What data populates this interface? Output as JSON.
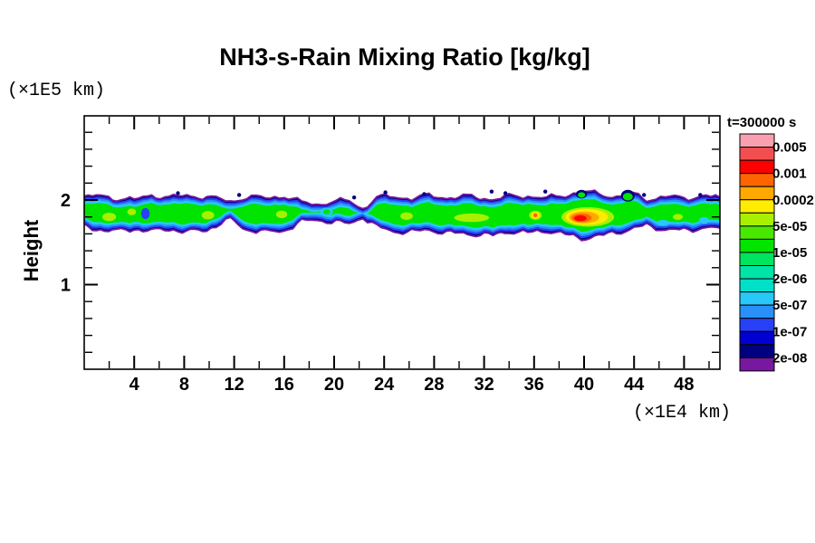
{
  "chart_data": {
    "type": "filled_contour",
    "title": "NH3-s-Rain Mixing Ratio [kg/kg]",
    "time_label": "t=300000 s",
    "ylabel": "Height",
    "ylabel_unit": "(×1E5 km)",
    "xlabel_unit": "(×1E4 km)",
    "x_range": [
      0,
      50.9
    ],
    "y_range": [
      0,
      3
    ],
    "x_major_tick_labels": [
      4,
      8,
      12,
      16,
      20,
      24,
      28,
      32,
      36,
      40,
      44,
      48
    ],
    "x_minor_tick_step": 2,
    "y_major_tick_labels": [
      1,
      2
    ],
    "y_minor_tick_step": 0.2,
    "grid": false,
    "legend": {
      "position": "right",
      "labels": [
        "0.005",
        "0.001",
        "0.0002",
        "5e-05",
        "1e-05",
        "2e-06",
        "5e-07",
        "1e-07",
        "2e-08"
      ],
      "levels_all_boundaries": [
        "0.005",
        "0.002",
        "0.001",
        "0.0005",
        "0.0002",
        "0.0001",
        "5e-05",
        "2e-05",
        "1e-05",
        "5e-06",
        "2e-06",
        "1e-06",
        "5e-07",
        "2e-07",
        "1e-07",
        "5e-08",
        "2e-08"
      ],
      "colors_top_to_bottom": [
        "#F8A0B0",
        "#F25050",
        "#FE0000",
        "#FE6400",
        "#FFA800",
        "#FFEC00",
        "#A8F000",
        "#48E800",
        "#00E400",
        "#00E45E",
        "#00E4A8",
        "#00E0C8",
        "#28C8F8",
        "#2890F8",
        "#2840F8",
        "#0000D0",
        "#000080",
        "#7818A0"
      ]
    },
    "band": {
      "note": "turbulent mixing-ratio band centered near height 1.8-2.0 (x1E5 km), spanning full x range",
      "points": [
        [
          0.0,
          2.03,
          1.69
        ],
        [
          1.3,
          2.05,
          1.65
        ],
        [
          2.6,
          2.02,
          1.63
        ],
        [
          4.0,
          2.0,
          1.66
        ],
        [
          5.4,
          2.06,
          1.63
        ],
        [
          6.8,
          2.03,
          1.66
        ],
        [
          8.2,
          2.05,
          1.62
        ],
        [
          9.8,
          2.04,
          1.65
        ],
        [
          11.7,
          1.98,
          1.77
        ],
        [
          13.0,
          2.04,
          1.65
        ],
        [
          14.5,
          2.02,
          1.62
        ],
        [
          16.0,
          2.05,
          1.64
        ],
        [
          17.4,
          1.97,
          1.74
        ],
        [
          18.6,
          1.95,
          1.77
        ],
        [
          19.8,
          1.98,
          1.74
        ],
        [
          21.2,
          1.99,
          1.72
        ],
        [
          22.3,
          1.9,
          1.8
        ],
        [
          23.4,
          2.03,
          1.68
        ],
        [
          24.8,
          2.04,
          1.63
        ],
        [
          26.2,
          2.02,
          1.62
        ],
        [
          27.6,
          2.05,
          1.65
        ],
        [
          29.0,
          2.03,
          1.61
        ],
        [
          31.0,
          2.04,
          1.6
        ],
        [
          32.7,
          2.01,
          1.58
        ],
        [
          34.0,
          2.04,
          1.63
        ],
        [
          35.5,
          2.05,
          1.61
        ],
        [
          37.0,
          2.02,
          1.64
        ],
        [
          38.5,
          2.06,
          1.59
        ],
        [
          39.8,
          2.1,
          1.55
        ],
        [
          41.2,
          2.07,
          1.57
        ],
        [
          42.6,
          2.04,
          1.62
        ],
        [
          43.7,
          2.08,
          1.65
        ],
        [
          45.0,
          2.01,
          1.7
        ],
        [
          46.5,
          2.04,
          1.65
        ],
        [
          48.0,
          2.02,
          1.64
        ],
        [
          49.4,
          2.05,
          1.67
        ],
        [
          50.9,
          2.03,
          1.67
        ]
      ],
      "layers": [
        {
          "color": "#000080",
          "inset": 0.0,
          "stroke": "#7818A0",
          "wig": 0.022
        },
        {
          "color": "#2840F8",
          "inset": 0.02,
          "wig": 0.018
        },
        {
          "color": "#2890F8",
          "inset": 0.042,
          "wig": 0.016
        },
        {
          "color": "#28C8F8",
          "inset": 0.064,
          "wig": 0.014
        },
        {
          "color": "#00E400",
          "inset": 0.09,
          "wig": 0.012
        }
      ]
    },
    "features": {
      "blobs": [
        [
          4.9,
          1.84,
          0.35,
          0.065,
          "#2840F8"
        ],
        [
          19.4,
          1.86,
          0.5,
          0.05,
          "#28C8F8"
        ],
        [
          19.4,
          1.86,
          0.28,
          0.03,
          "#00E400"
        ],
        [
          2.0,
          1.8,
          0.55,
          0.05,
          "#A8F000"
        ],
        [
          3.8,
          1.86,
          0.35,
          0.04,
          "#A8F000"
        ],
        [
          9.9,
          1.82,
          0.5,
          0.05,
          "#A8F000"
        ],
        [
          15.8,
          1.83,
          0.45,
          0.045,
          "#A8F000"
        ],
        [
          25.8,
          1.81,
          0.5,
          0.045,
          "#A8F000"
        ],
        [
          31.0,
          1.79,
          1.4,
          0.05,
          "#A8F000"
        ],
        [
          47.5,
          1.8,
          0.4,
          0.035,
          "#A8F000"
        ],
        [
          43.5,
          2.05,
          0.55,
          0.07,
          "#000080"
        ],
        [
          43.5,
          2.04,
          0.4,
          0.045,
          "#00E400"
        ],
        [
          39.8,
          2.07,
          0.45,
          0.05,
          "#000080"
        ],
        [
          39.8,
          2.06,
          0.3,
          0.032,
          "#00E400"
        ],
        [
          36.1,
          1.82,
          0.5,
          0.055,
          "#A8F000"
        ],
        [
          36.1,
          1.82,
          0.32,
          0.04,
          "#FFEC00"
        ],
        [
          36.1,
          1.82,
          0.17,
          0.024,
          "#FE6400"
        ],
        [
          40.3,
          1.8,
          2.1,
          0.115,
          "#A8F000"
        ],
        [
          40.2,
          1.8,
          1.7,
          0.095,
          "#FFEC00"
        ],
        [
          40.0,
          1.795,
          1.2,
          0.07,
          "#FFA800"
        ],
        [
          39.8,
          1.79,
          0.8,
          0.05,
          "#FE6400"
        ],
        [
          39.7,
          1.785,
          0.5,
          0.034,
          "#FE0000"
        ],
        [
          46.3,
          1.73,
          0.5,
          0.035,
          "#28C8F8"
        ],
        [
          49.6,
          1.76,
          0.4,
          0.04,
          "#28C8F8"
        ]
      ],
      "specks": [
        [
          7.5,
          2.08
        ],
        [
          12.4,
          2.06
        ],
        [
          21.6,
          2.03
        ],
        [
          24.1,
          2.09
        ],
        [
          27.2,
          2.07
        ],
        [
          32.6,
          2.1
        ],
        [
          33.7,
          2.08
        ],
        [
          36.9,
          2.1
        ],
        [
          44.8,
          2.06
        ],
        [
          49.3,
          2.06
        ]
      ]
    },
    "colors": {
      "background": "#ffffff",
      "frame": "#000000",
      "text": "#000000"
    }
  }
}
